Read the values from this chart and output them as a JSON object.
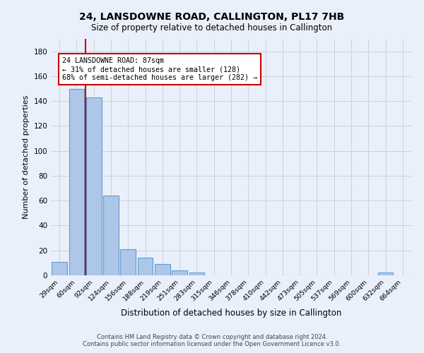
{
  "title": "24, LANSDOWNE ROAD, CALLINGTON, PL17 7HB",
  "subtitle": "Size of property relative to detached houses in Callington",
  "xlabel": "Distribution of detached houses by size in Callington",
  "ylabel": "Number of detached properties",
  "bin_labels": [
    "29sqm",
    "60sqm",
    "92sqm",
    "124sqm",
    "156sqm",
    "188sqm",
    "219sqm",
    "251sqm",
    "283sqm",
    "315sqm",
    "346sqm",
    "378sqm",
    "410sqm",
    "442sqm",
    "473sqm",
    "505sqm",
    "537sqm",
    "569sqm",
    "600sqm",
    "632sqm",
    "664sqm"
  ],
  "bar_heights": [
    11,
    150,
    143,
    64,
    21,
    14,
    9,
    4,
    2,
    0,
    0,
    0,
    0,
    0,
    0,
    0,
    0,
    0,
    0,
    2,
    0
  ],
  "bar_color": "#aec6e8",
  "bar_edge_color": "#5a9fd4",
  "background_color": "#eaf0fb",
  "grid_color": "#cccccc",
  "marker_color": "#cc0000",
  "annotation_text": "24 LANSDOWNE ROAD: 87sqm\n← 31% of detached houses are smaller (128)\n68% of semi-detached houses are larger (282) →",
  "annotation_box_color": "white",
  "annotation_box_edge": "#cc0000",
  "ylim": [
    0,
    190
  ],
  "yticks": [
    0,
    20,
    40,
    60,
    80,
    100,
    120,
    140,
    160,
    180
  ],
  "footer_line1": "Contains HM Land Registry data © Crown copyright and database right 2024.",
  "footer_line2": "Contains public sector information licensed under the Open Government Licence v3.0."
}
